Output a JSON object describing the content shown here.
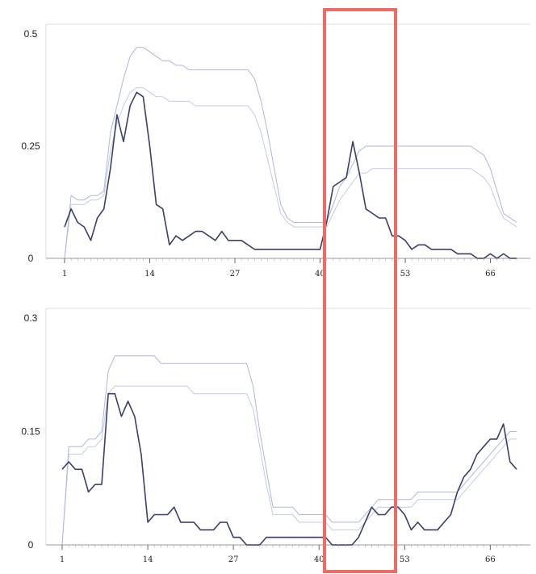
{
  "chart_data": [
    {
      "type": "line",
      "xlim": [
        1,
        70
      ],
      "ylim": [
        0,
        0.5
      ],
      "yticks": [
        0,
        0.25,
        0.5
      ],
      "ytick_labels": [
        "0",
        "0.25",
        "0.5"
      ],
      "xticks": [
        1,
        14,
        27,
        40,
        53,
        66
      ],
      "xtick_labels": [
        "1",
        "14",
        "27",
        "40",
        "53",
        "66"
      ],
      "grid": false,
      "series": [
        {
          "role": "main",
          "color": "#3a3f6b",
          "x": [
            1,
            2,
            3,
            4,
            5,
            6,
            7,
            8,
            9,
            10,
            11,
            12,
            13,
            14,
            15,
            16,
            17,
            18,
            19,
            20,
            21,
            22,
            23,
            24,
            25,
            26,
            27,
            28,
            29,
            30,
            31,
            32,
            33,
            34,
            35,
            36,
            37,
            38,
            39,
            40,
            41,
            42,
            43,
            44,
            45,
            46,
            47,
            48,
            49,
            50,
            51,
            52,
            53,
            54,
            55,
            56,
            57,
            58,
            59,
            60,
            61,
            62,
            63,
            64,
            65,
            66,
            67,
            68,
            69,
            70
          ],
          "y": [
            0.07,
            0.11,
            0.08,
            0.07,
            0.04,
            0.09,
            0.11,
            0.2,
            0.32,
            0.26,
            0.34,
            0.37,
            0.36,
            0.25,
            0.12,
            0.11,
            0.03,
            0.05,
            0.04,
            0.05,
            0.06,
            0.06,
            0.05,
            0.04,
            0.06,
            0.04,
            0.04,
            0.04,
            0.03,
            0.02,
            0.02,
            0.02,
            0.02,
            0.02,
            0.02,
            0.02,
            0.02,
            0.02,
            0.02,
            0.02,
            0.08,
            0.16,
            0.17,
            0.18,
            0.26,
            0.19,
            0.11,
            0.1,
            0.09,
            0.09,
            0.05,
            0.05,
            0.04,
            0.02,
            0.03,
            0.03,
            0.02,
            0.02,
            0.02,
            0.02,
            0.01,
            0.01,
            0.01,
            0.0,
            0.0,
            0.01,
            0.0,
            0.01,
            0.0,
            0.0
          ]
        },
        {
          "role": "band-upper",
          "color": "#aeb6de",
          "x": [
            1,
            2,
            3,
            4,
            5,
            6,
            7,
            8,
            9,
            10,
            11,
            12,
            13,
            14,
            15,
            16,
            17,
            18,
            19,
            20,
            21,
            22,
            23,
            24,
            25,
            26,
            27,
            28,
            29,
            30,
            31,
            32,
            33,
            34,
            35,
            36,
            37,
            38,
            39,
            40,
            41,
            42,
            43,
            44,
            45,
            46,
            47,
            48,
            49,
            50,
            51,
            52,
            53,
            54,
            55,
            56,
            57,
            58,
            59,
            60,
            61,
            62,
            63,
            64,
            65,
            66,
            67,
            68,
            69,
            70
          ],
          "y": [
            0.0,
            0.14,
            0.13,
            0.13,
            0.14,
            0.14,
            0.15,
            0.28,
            0.34,
            0.4,
            0.45,
            0.47,
            0.47,
            0.46,
            0.45,
            0.44,
            0.44,
            0.43,
            0.43,
            0.42,
            0.42,
            0.42,
            0.42,
            0.42,
            0.42,
            0.42,
            0.42,
            0.42,
            0.42,
            0.4,
            0.35,
            0.28,
            0.2,
            0.12,
            0.09,
            0.08,
            0.08,
            0.08,
            0.08,
            0.08,
            0.08,
            0.12,
            0.16,
            0.18,
            0.21,
            0.24,
            0.25,
            0.25,
            0.25,
            0.25,
            0.25,
            0.25,
            0.25,
            0.25,
            0.25,
            0.25,
            0.25,
            0.25,
            0.25,
            0.25,
            0.25,
            0.25,
            0.25,
            0.24,
            0.23,
            0.2,
            0.15,
            0.1,
            0.09,
            0.08
          ]
        },
        {
          "role": "band-lower",
          "color": "#c4cae8",
          "x": [
            1,
            2,
            3,
            4,
            5,
            6,
            7,
            8,
            9,
            10,
            11,
            12,
            13,
            14,
            15,
            16,
            17,
            18,
            19,
            20,
            21,
            22,
            23,
            24,
            25,
            26,
            27,
            28,
            29,
            30,
            31,
            32,
            33,
            34,
            35,
            36,
            37,
            38,
            39,
            40,
            41,
            42,
            43,
            44,
            45,
            46,
            47,
            48,
            49,
            50,
            51,
            52,
            53,
            54,
            55,
            56,
            57,
            58,
            59,
            60,
            61,
            62,
            63,
            64,
            65,
            66,
            67,
            68,
            69,
            70
          ],
          "y": [
            0.0,
            0.12,
            0.12,
            0.12,
            0.13,
            0.13,
            0.14,
            0.24,
            0.3,
            0.34,
            0.37,
            0.38,
            0.38,
            0.37,
            0.36,
            0.36,
            0.35,
            0.35,
            0.35,
            0.35,
            0.34,
            0.34,
            0.34,
            0.34,
            0.34,
            0.34,
            0.34,
            0.34,
            0.34,
            0.32,
            0.28,
            0.22,
            0.16,
            0.1,
            0.08,
            0.07,
            0.07,
            0.07,
            0.07,
            0.07,
            0.07,
            0.1,
            0.13,
            0.15,
            0.17,
            0.19,
            0.19,
            0.2,
            0.2,
            0.2,
            0.2,
            0.2,
            0.2,
            0.2,
            0.2,
            0.2,
            0.2,
            0.2,
            0.2,
            0.2,
            0.2,
            0.2,
            0.2,
            0.19,
            0.18,
            0.16,
            0.12,
            0.09,
            0.08,
            0.07
          ]
        }
      ]
    },
    {
      "type": "line",
      "xlim": [
        1,
        70
      ],
      "ylim": [
        0,
        0.3
      ],
      "yticks": [
        0,
        0.15,
        0.3
      ],
      "ytick_labels": [
        "0",
        "0.15",
        "0.3"
      ],
      "xticks": [
        1,
        14,
        27,
        40,
        53,
        66
      ],
      "xtick_labels": [
        "1",
        "14",
        "27",
        "40",
        "53",
        "66"
      ],
      "grid": false,
      "series": [
        {
          "role": "main",
          "color": "#3a3f6b",
          "x": [
            1,
            2,
            3,
            4,
            5,
            6,
            7,
            8,
            9,
            10,
            11,
            12,
            13,
            14,
            15,
            16,
            17,
            18,
            19,
            20,
            21,
            22,
            23,
            24,
            25,
            26,
            27,
            28,
            29,
            30,
            31,
            32,
            33,
            34,
            35,
            36,
            37,
            38,
            39,
            40,
            41,
            42,
            43,
            44,
            45,
            46,
            47,
            48,
            49,
            50,
            51,
            52,
            53,
            54,
            55,
            56,
            57,
            58,
            59,
            60,
            61,
            62,
            63,
            64,
            65,
            66,
            67,
            68,
            69,
            70
          ],
          "y": [
            0.1,
            0.11,
            0.1,
            0.1,
            0.07,
            0.08,
            0.08,
            0.2,
            0.2,
            0.17,
            0.19,
            0.17,
            0.12,
            0.03,
            0.04,
            0.04,
            0.04,
            0.05,
            0.03,
            0.03,
            0.03,
            0.02,
            0.02,
            0.02,
            0.03,
            0.03,
            0.01,
            0.01,
            0.0,
            0.0,
            0.0,
            0.01,
            0.01,
            0.01,
            0.01,
            0.01,
            0.01,
            0.01,
            0.01,
            0.01,
            0.01,
            0.0,
            0.0,
            0.0,
            0.0,
            0.01,
            0.03,
            0.05,
            0.04,
            0.04,
            0.05,
            0.05,
            0.04,
            0.02,
            0.03,
            0.02,
            0.02,
            0.02,
            0.03,
            0.04,
            0.07,
            0.09,
            0.1,
            0.12,
            0.13,
            0.14,
            0.14,
            0.16,
            0.11,
            0.1
          ]
        },
        {
          "role": "band-upper",
          "color": "#aeb6de",
          "x": [
            1,
            2,
            3,
            4,
            5,
            6,
            7,
            8,
            9,
            10,
            11,
            12,
            13,
            14,
            15,
            16,
            17,
            18,
            19,
            20,
            21,
            22,
            23,
            24,
            25,
            26,
            27,
            28,
            29,
            30,
            31,
            32,
            33,
            34,
            35,
            36,
            37,
            38,
            39,
            40,
            41,
            42,
            43,
            44,
            45,
            46,
            47,
            48,
            49,
            50,
            51,
            52,
            53,
            54,
            55,
            56,
            57,
            58,
            59,
            60,
            61,
            62,
            63,
            64,
            65,
            66,
            67,
            68,
            69,
            70
          ],
          "y": [
            0.0,
            0.13,
            0.13,
            0.13,
            0.14,
            0.14,
            0.15,
            0.23,
            0.25,
            0.25,
            0.25,
            0.25,
            0.25,
            0.25,
            0.25,
            0.24,
            0.24,
            0.24,
            0.24,
            0.24,
            0.24,
            0.24,
            0.24,
            0.24,
            0.24,
            0.24,
            0.24,
            0.24,
            0.24,
            0.21,
            0.15,
            0.1,
            0.05,
            0.05,
            0.05,
            0.05,
            0.04,
            0.04,
            0.04,
            0.04,
            0.04,
            0.03,
            0.03,
            0.03,
            0.03,
            0.03,
            0.04,
            0.05,
            0.06,
            0.06,
            0.06,
            0.06,
            0.06,
            0.06,
            0.07,
            0.07,
            0.07,
            0.07,
            0.07,
            0.07,
            0.07,
            0.08,
            0.09,
            0.1,
            0.11,
            0.12,
            0.13,
            0.14,
            0.15,
            0.15
          ]
        },
        {
          "role": "band-lower",
          "color": "#c4cae8",
          "x": [
            1,
            2,
            3,
            4,
            5,
            6,
            7,
            8,
            9,
            10,
            11,
            12,
            13,
            14,
            15,
            16,
            17,
            18,
            19,
            20,
            21,
            22,
            23,
            24,
            25,
            26,
            27,
            28,
            29,
            30,
            31,
            32,
            33,
            34,
            35,
            36,
            37,
            38,
            39,
            40,
            41,
            42,
            43,
            44,
            45,
            46,
            47,
            48,
            49,
            50,
            51,
            52,
            53,
            54,
            55,
            56,
            57,
            58,
            59,
            60,
            61,
            62,
            63,
            64,
            65,
            66,
            67,
            68,
            69,
            70
          ],
          "y": [
            0.0,
            0.12,
            0.12,
            0.12,
            0.13,
            0.13,
            0.14,
            0.2,
            0.21,
            0.21,
            0.21,
            0.21,
            0.21,
            0.21,
            0.21,
            0.21,
            0.21,
            0.21,
            0.21,
            0.21,
            0.2,
            0.2,
            0.2,
            0.2,
            0.2,
            0.2,
            0.2,
            0.2,
            0.2,
            0.18,
            0.13,
            0.08,
            0.04,
            0.04,
            0.04,
            0.04,
            0.03,
            0.03,
            0.03,
            0.03,
            0.03,
            0.02,
            0.02,
            0.02,
            0.02,
            0.02,
            0.03,
            0.04,
            0.05,
            0.05,
            0.05,
            0.05,
            0.05,
            0.05,
            0.06,
            0.06,
            0.06,
            0.06,
            0.06,
            0.06,
            0.06,
            0.07,
            0.08,
            0.09,
            0.1,
            0.11,
            0.12,
            0.13,
            0.14,
            0.14
          ]
        }
      ]
    }
  ],
  "highlight": {
    "color": "#f06a64",
    "x_range": [
      41,
      50
    ]
  }
}
